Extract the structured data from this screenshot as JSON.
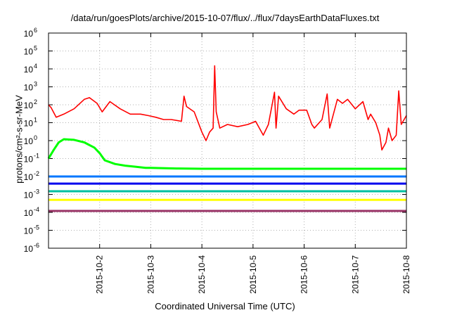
{
  "chart_data": {
    "type": "line",
    "title": "/data/run/goesPlots/archive/2015-10-07/flux/../flux/7daysEarthDataFluxes.txt",
    "xlabel": "Coordinated Universal Time (UTC)",
    "ylabel": "protons/cm²-s-sr-MeV",
    "yscale": "log",
    "ylim": [
      1e-06,
      1000000.0
    ],
    "xlim": [
      "2015-10-01",
      "2015-10-08"
    ],
    "grid": true,
    "yticks": [
      {
        "value": 1e-06,
        "base": "10",
        "exp": "-6"
      },
      {
        "value": 1e-05,
        "base": "10",
        "exp": "-5"
      },
      {
        "value": 0.0001,
        "base": "10",
        "exp": "-4"
      },
      {
        "value": 0.001,
        "base": "10",
        "exp": "-3"
      },
      {
        "value": 0.01,
        "base": "10",
        "exp": "-2"
      },
      {
        "value": 0.1,
        "base": "10",
        "exp": "-1"
      },
      {
        "value": 1,
        "base": "10",
        "exp": "0"
      },
      {
        "value": 10.0,
        "base": "10",
        "exp": "1"
      },
      {
        "value": 100.0,
        "base": "10",
        "exp": "2"
      },
      {
        "value": 1000.0,
        "base": "10",
        "exp": "3"
      },
      {
        "value": 10000.0,
        "base": "10",
        "exp": "4"
      },
      {
        "value": 100000.0,
        "base": "10",
        "exp": "5"
      },
      {
        "value": 1000000.0,
        "base": "10",
        "exp": "6"
      }
    ],
    "xticks": [
      "2015-10-2",
      "2015-10-3",
      "2015-10-4",
      "2015-10-5",
      "2015-10-6",
      "2015-10-7",
      "2015-10-8"
    ],
    "series": [
      {
        "color": "#ff0000",
        "x": [
          1.0,
          1.05,
          1.15,
          1.3,
          1.5,
          1.7,
          1.8,
          1.95,
          2.05,
          2.2,
          2.4,
          2.6,
          2.8,
          2.95,
          3.1,
          3.25,
          3.4,
          3.6,
          3.65,
          3.7,
          3.85,
          4.0,
          4.08,
          4.15,
          4.22,
          4.25,
          4.28,
          4.35,
          4.5,
          4.7,
          4.9,
          5.05,
          5.2,
          5.3,
          5.42,
          5.45,
          5.5,
          5.65,
          5.8,
          5.9,
          6.05,
          6.15,
          6.2,
          6.35,
          6.45,
          6.5,
          6.65,
          6.75,
          6.85,
          7.0,
          7.15,
          7.25,
          7.3,
          7.4,
          7.48,
          7.52,
          7.6,
          7.65,
          7.72,
          7.8,
          7.85,
          7.9,
          8.0
        ],
        "y": [
          100,
          70,
          20,
          30,
          60,
          200,
          250,
          120,
          40,
          150,
          60,
          30,
          30,
          25,
          20,
          15,
          15,
          12,
          300,
          80,
          40,
          3,
          1,
          3,
          5,
          15000,
          40,
          5,
          8,
          6,
          8,
          12,
          2,
          8,
          500,
          5,
          300,
          60,
          30,
          50,
          50,
          8,
          5,
          15,
          400,
          5,
          200,
          120,
          200,
          60,
          150,
          15,
          30,
          10,
          2,
          0.3,
          0.8,
          5,
          1,
          2,
          600,
          8,
          25
        ]
      },
      {
        "color": "#00ff00",
        "x": [
          1.0,
          1.1,
          1.2,
          1.3,
          1.5,
          1.7,
          1.9,
          2.0,
          2.1,
          2.3,
          2.5,
          2.7,
          2.9,
          3.0,
          3.5,
          4.0,
          4.5,
          5.0,
          5.5,
          6.0,
          6.5,
          7.0,
          7.5,
          8.0
        ],
        "y": [
          0.1,
          0.3,
          0.8,
          1.2,
          1.1,
          0.8,
          0.4,
          0.2,
          0.08,
          0.05,
          0.04,
          0.035,
          0.03,
          0.03,
          0.028,
          0.027,
          0.027,
          0.027,
          0.027,
          0.027,
          0.027,
          0.027,
          0.027,
          0.027
        ]
      },
      {
        "color": "#0077ff",
        "x": [
          1.0,
          2.0,
          3.0,
          4.0,
          5.0,
          6.0,
          7.0,
          8.0
        ],
        "y": [
          0.01,
          0.01,
          0.01,
          0.01,
          0.01,
          0.01,
          0.01,
          0.01
        ]
      },
      {
        "color": "#0000ee",
        "x": [
          1.0,
          2.0,
          3.0,
          4.0,
          5.0,
          6.0,
          7.0,
          8.0
        ],
        "y": [
          0.004,
          0.004,
          0.004,
          0.004,
          0.004,
          0.004,
          0.004,
          0.004
        ]
      },
      {
        "color": "#00c0a0",
        "x": [
          1.0,
          2.0,
          3.0,
          4.0,
          5.0,
          6.0,
          7.0,
          8.0
        ],
        "y": [
          0.0015,
          0.0015,
          0.0015,
          0.0015,
          0.0015,
          0.0015,
          0.0015,
          0.0015
        ]
      },
      {
        "color": "#ffff00",
        "x": [
          1.0,
          2.0,
          3.0,
          4.0,
          5.0,
          6.0,
          7.0,
          8.0
        ],
        "y": [
          0.0005,
          0.0005,
          0.0005,
          0.0005,
          0.0005,
          0.0005,
          0.0005,
          0.0005
        ]
      },
      {
        "color": "#993366",
        "x": [
          1.0,
          2.0,
          3.0,
          4.0,
          5.0,
          6.0,
          7.0,
          8.0
        ],
        "y": [
          0.00012,
          0.00012,
          0.00012,
          0.00012,
          0.00012,
          0.00012,
          0.00012,
          0.00012
        ]
      }
    ]
  }
}
